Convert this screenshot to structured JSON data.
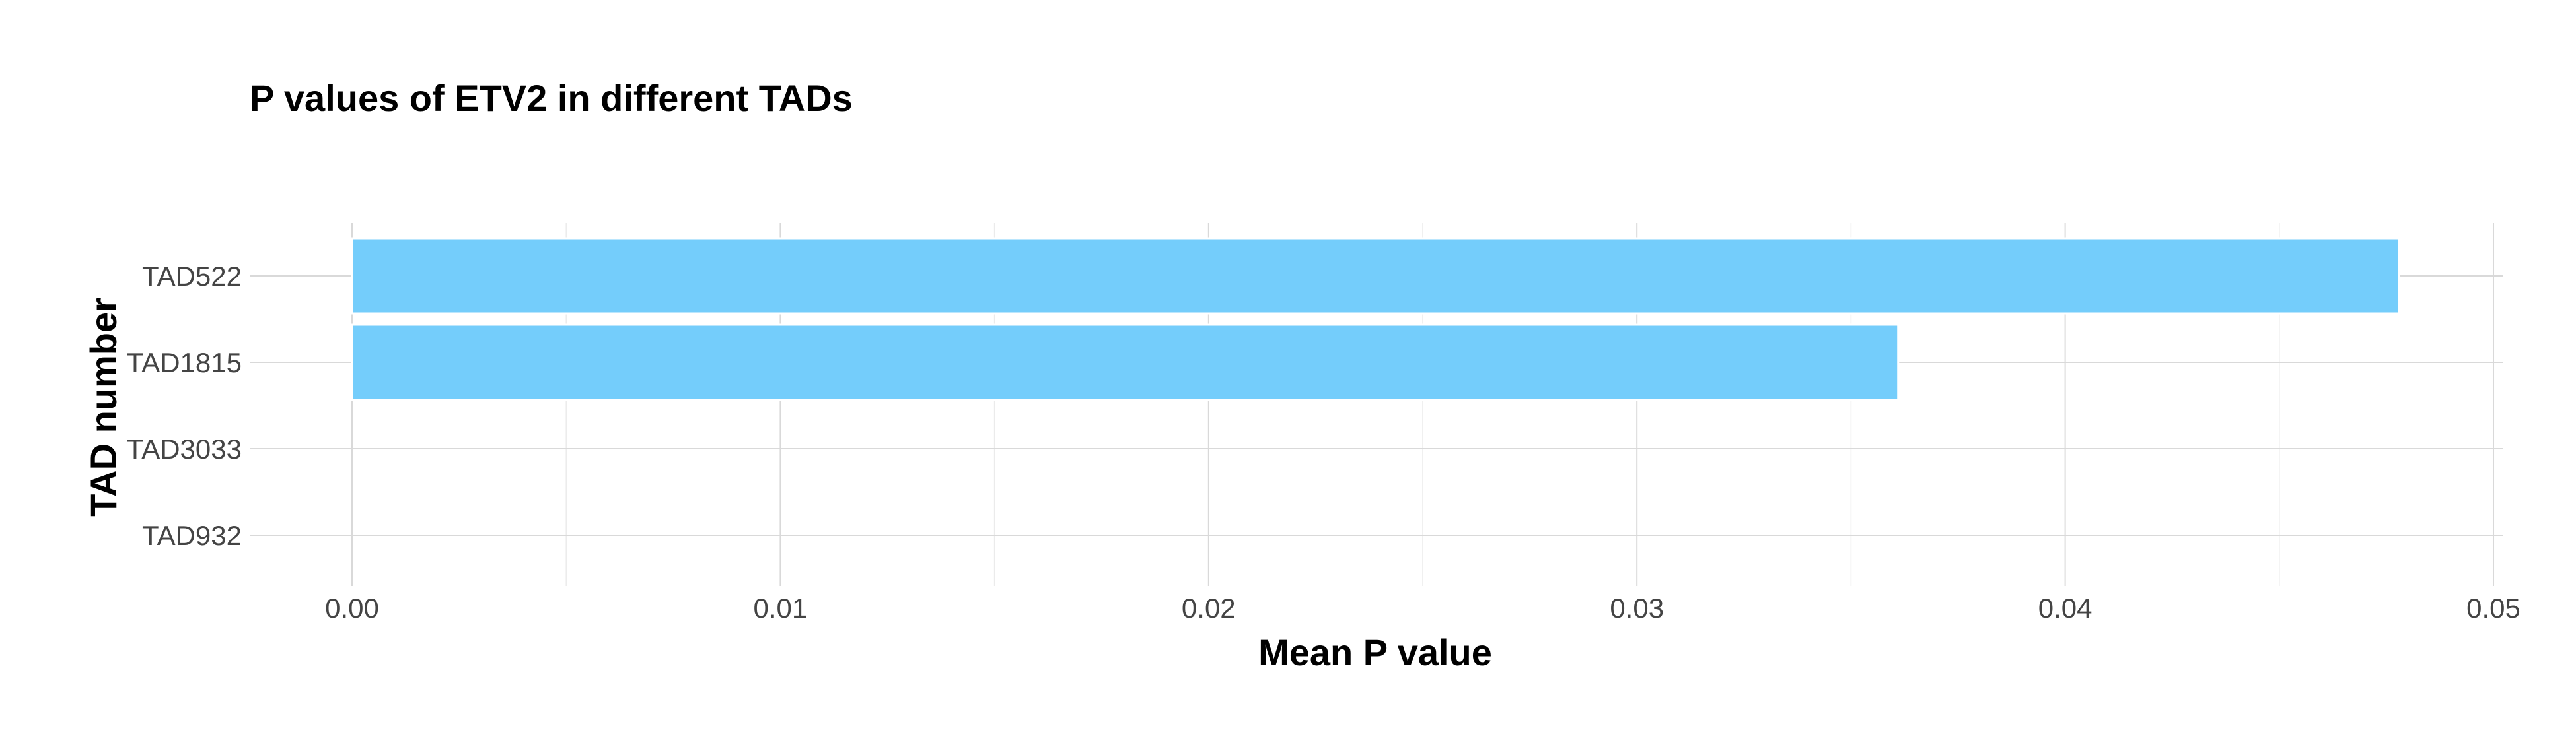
{
  "chart_data": {
    "type": "bar",
    "orientation": "horizontal",
    "title": "P values of ETV2 in different TADs",
    "xlabel": "Mean P value",
    "ylabel": "TAD number",
    "categories": [
      "TAD522",
      "TAD1815",
      "TAD3033",
      "TAD932"
    ],
    "values": [
      0.0478,
      0.0361,
      0.0,
      0.0
    ],
    "xlim": [
      0.0,
      0.05
    ],
    "xticks": [
      "0.00",
      "0.01",
      "0.02",
      "0.03",
      "0.04",
      "0.05"
    ],
    "grid": true,
    "legend": "none",
    "colors": {
      "bar_fill": "#74cdfb",
      "bar_stroke": "#ffffff"
    }
  }
}
